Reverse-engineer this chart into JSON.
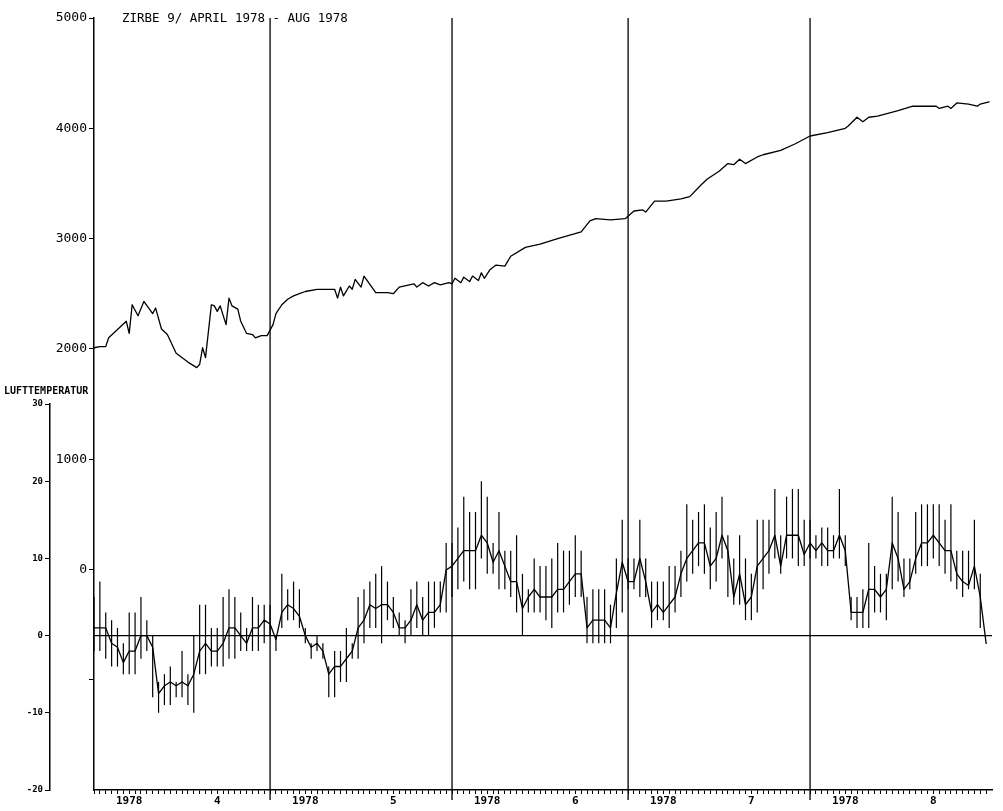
{
  "chart_data": {
    "type": "line",
    "title": "ZIRBE 9/ APRIL 1978 - AUG 1978",
    "y2label": "LUFTTEMPERATUR",
    "grid": false,
    "legend": false,
    "marker": "none",
    "xlim": [
      "1978-04-01",
      "1978-09-01"
    ],
    "xticks": [
      {
        "value": "1978-04-01",
        "label": null
      },
      {
        "value": "1978-04-02",
        "label": null
      },
      {
        "value": "1978-04-03",
        "label": null
      },
      {
        "value": "1978-04-04",
        "label": null
      },
      {
        "value": "1978-04-05",
        "label": null
      },
      {
        "value": "1978-04-06",
        "label": null
      },
      {
        "value": "1978-04-07",
        "label": "1978"
      },
      {
        "value": "1978-04-08",
        "label": null
      },
      {
        "value": "1978-04-09",
        "label": null
      },
      {
        "value": "1978-04-10",
        "label": null
      },
      {
        "value": "1978-04-11",
        "label": null
      },
      {
        "value": "1978-04-12",
        "label": null
      },
      {
        "value": "1978-04-13",
        "label": null
      },
      {
        "value": "1978-04-14",
        "label": null
      },
      {
        "value": "1978-04-15",
        "label": null
      },
      {
        "value": "1978-04-16",
        "label": null
      },
      {
        "value": "1978-04-17",
        "label": null
      },
      {
        "value": "1978-04-18",
        "label": null
      },
      {
        "value": "1978-04-19",
        "label": null
      },
      {
        "value": "1978-04-20",
        "label": null
      },
      {
        "value": "1978-04-21",
        "label": null
      },
      {
        "value": "1978-04-22",
        "label": "4"
      },
      {
        "value": "1978-04-23",
        "label": null
      },
      {
        "value": "1978-04-24",
        "label": null
      },
      {
        "value": "1978-04-25",
        "label": null
      },
      {
        "value": "1978-04-26",
        "label": null
      },
      {
        "value": "1978-04-27",
        "label": null
      },
      {
        "value": "1978-04-28",
        "label": null
      },
      {
        "value": "1978-04-29",
        "label": null
      },
      {
        "value": "1978-04-30",
        "label": null
      },
      {
        "value": "1978-05-01",
        "label": null
      },
      {
        "value": "1978-05-02",
        "label": null
      },
      {
        "value": "1978-05-03",
        "label": null
      },
      {
        "value": "1978-05-04",
        "label": null
      },
      {
        "value": "1978-05-05",
        "label": null
      },
      {
        "value": "1978-05-06",
        "label": null
      },
      {
        "value": "1978-05-07",
        "label": "1978"
      },
      {
        "value": "1978-05-08",
        "label": null
      },
      {
        "value": "1978-05-09",
        "label": null
      },
      {
        "value": "1978-05-10",
        "label": null
      },
      {
        "value": "1978-05-11",
        "label": null
      },
      {
        "value": "1978-05-12",
        "label": null
      },
      {
        "value": "1978-05-13",
        "label": null
      },
      {
        "value": "1978-05-14",
        "label": null
      },
      {
        "value": "1978-05-15",
        "label": null
      },
      {
        "value": "1978-05-16",
        "label": null
      },
      {
        "value": "1978-05-17",
        "label": null
      },
      {
        "value": "1978-05-18",
        "label": null
      },
      {
        "value": "1978-05-19",
        "label": null
      },
      {
        "value": "1978-05-20",
        "label": null
      },
      {
        "value": "1978-05-21",
        "label": null
      },
      {
        "value": "1978-05-22",
        "label": "5"
      },
      {
        "value": "1978-05-23",
        "label": null
      },
      {
        "value": "1978-05-24",
        "label": null
      },
      {
        "value": "1978-05-25",
        "label": null
      },
      {
        "value": "1978-05-26",
        "label": null
      },
      {
        "value": "1978-05-27",
        "label": null
      },
      {
        "value": "1978-05-28",
        "label": null
      },
      {
        "value": "1978-05-29",
        "label": null
      },
      {
        "value": "1978-05-30",
        "label": null
      },
      {
        "value": "1978-05-31",
        "label": null
      },
      {
        "value": "1978-06-01",
        "label": null
      },
      {
        "value": "1978-06-02",
        "label": null
      },
      {
        "value": "1978-06-03",
        "label": null
      },
      {
        "value": "1978-06-04",
        "label": null
      },
      {
        "value": "1978-06-05",
        "label": null
      },
      {
        "value": "1978-06-06",
        "label": null
      },
      {
        "value": "1978-06-07",
        "label": "1978"
      },
      {
        "value": "1978-06-08",
        "label": null
      },
      {
        "value": "1978-06-09",
        "label": null
      },
      {
        "value": "1978-06-10",
        "label": null
      },
      {
        "value": "1978-06-11",
        "label": null
      },
      {
        "value": "1978-06-12",
        "label": null
      },
      {
        "value": "1978-06-13",
        "label": null
      },
      {
        "value": "1978-06-14",
        "label": null
      },
      {
        "value": "1978-06-15",
        "label": null
      },
      {
        "value": "1978-06-16",
        "label": null
      },
      {
        "value": "1978-06-17",
        "label": null
      },
      {
        "value": "1978-06-18",
        "label": null
      },
      {
        "value": "1978-06-19",
        "label": null
      },
      {
        "value": "1978-06-20",
        "label": null
      },
      {
        "value": "1978-06-21",
        "label": null
      },
      {
        "value": "1978-06-22",
        "label": "6"
      },
      {
        "value": "1978-06-23",
        "label": null
      },
      {
        "value": "1978-06-24",
        "label": null
      },
      {
        "value": "1978-06-25",
        "label": null
      },
      {
        "value": "1978-06-26",
        "label": null
      },
      {
        "value": "1978-06-27",
        "label": null
      },
      {
        "value": "1978-06-28",
        "label": null
      },
      {
        "value": "1978-06-29",
        "label": null
      },
      {
        "value": "1978-06-30",
        "label": null
      },
      {
        "value": "1978-07-01",
        "label": null
      },
      {
        "value": "1978-07-02",
        "label": null
      },
      {
        "value": "1978-07-03",
        "label": null
      },
      {
        "value": "1978-07-04",
        "label": null
      },
      {
        "value": "1978-07-05",
        "label": null
      },
      {
        "value": "1978-07-06",
        "label": null
      },
      {
        "value": "1978-07-07",
        "label": "1978"
      },
      {
        "value": "1978-07-08",
        "label": null
      },
      {
        "value": "1978-07-09",
        "label": null
      },
      {
        "value": "1978-07-10",
        "label": null
      },
      {
        "value": "1978-07-11",
        "label": null
      },
      {
        "value": "1978-07-12",
        "label": null
      },
      {
        "value": "1978-07-13",
        "label": null
      },
      {
        "value": "1978-07-14",
        "label": null
      },
      {
        "value": "1978-07-15",
        "label": null
      },
      {
        "value": "1978-07-16",
        "label": null
      },
      {
        "value": "1978-07-17",
        "label": null
      },
      {
        "value": "1978-07-18",
        "label": null
      },
      {
        "value": "1978-07-19",
        "label": null
      },
      {
        "value": "1978-07-20",
        "label": null
      },
      {
        "value": "1978-07-21",
        "label": null
      },
      {
        "value": "1978-07-22",
        "label": "7"
      },
      {
        "value": "1978-07-23",
        "label": null
      },
      {
        "value": "1978-07-24",
        "label": null
      },
      {
        "value": "1978-07-25",
        "label": null
      },
      {
        "value": "1978-07-26",
        "label": null
      },
      {
        "value": "1978-07-27",
        "label": null
      },
      {
        "value": "1978-07-28",
        "label": null
      },
      {
        "value": "1978-07-29",
        "label": null
      },
      {
        "value": "1978-07-30",
        "label": null
      },
      {
        "value": "1978-07-31",
        "label": null
      },
      {
        "value": "1978-08-01",
        "label": null
      },
      {
        "value": "1978-08-02",
        "label": null
      },
      {
        "value": "1978-08-03",
        "label": null
      },
      {
        "value": "1978-08-04",
        "label": null
      },
      {
        "value": "1978-08-05",
        "label": null
      },
      {
        "value": "1978-08-06",
        "label": null
      },
      {
        "value": "1978-08-07",
        "label": "1978"
      },
      {
        "value": "1978-08-08",
        "label": null
      },
      {
        "value": "1978-08-09",
        "label": null
      },
      {
        "value": "1978-08-10",
        "label": null
      },
      {
        "value": "1978-08-11",
        "label": null
      },
      {
        "value": "1978-08-12",
        "label": null
      },
      {
        "value": "1978-08-13",
        "label": null
      },
      {
        "value": "1978-08-14",
        "label": null
      },
      {
        "value": "1978-08-15",
        "label": null
      },
      {
        "value": "1978-08-16",
        "label": null
      },
      {
        "value": "1978-08-17",
        "label": null
      },
      {
        "value": "1978-08-18",
        "label": null
      },
      {
        "value": "1978-08-19",
        "label": null
      },
      {
        "value": "1978-08-20",
        "label": null
      },
      {
        "value": "1978-08-21",
        "label": null
      },
      {
        "value": "1978-08-22",
        "label": "8"
      },
      {
        "value": "1978-08-23",
        "label": null
      },
      {
        "value": "1978-08-24",
        "label": null
      },
      {
        "value": "1978-08-25",
        "label": null
      },
      {
        "value": "1978-08-26",
        "label": null
      },
      {
        "value": "1978-08-27",
        "label": null
      },
      {
        "value": "1978-08-28",
        "label": null
      },
      {
        "value": "1978-08-29",
        "label": null
      },
      {
        "value": "1978-08-30",
        "label": null
      },
      {
        "value": "1978-08-31",
        "label": null
      }
    ],
    "ylim": [
      -2000,
      5000
    ],
    "yticks": [
      {
        "value": -1000,
        "label": null
      },
      0,
      1000,
      2000,
      3000,
      4000,
      5000
    ],
    "y2lim": [
      -20,
      30
    ],
    "y2ticks": [
      -20,
      -10,
      0,
      10,
      20,
      30
    ],
    "ref_lines": [
      {
        "axis": "x",
        "value": "1978-05-01",
        "color": "#000000"
      },
      {
        "axis": "x",
        "value": "1978-06-01",
        "color": "#000000"
      },
      {
        "axis": "x",
        "value": "1978-07-01",
        "color": "#000000"
      },
      {
        "axis": "x",
        "value": "1978-08-01",
        "color": "#000000"
      },
      {
        "axis": "y2",
        "value": 0,
        "color": "#000000"
      }
    ],
    "series": [
      {
        "color": "#000000",
        "x": [
          "1978-04-01",
          "1978-04-02",
          "1978-04-03",
          "1978-04-03T12:00",
          "1978-04-06T12:00",
          "1978-04-07",
          "1978-04-07T12:00",
          "1978-04-08T12:00",
          "1978-04-09T12:00",
          "1978-04-11",
          "1978-04-11T12:00",
          "1978-04-12T12:00",
          "1978-04-13T12:00",
          "1978-04-15",
          "1978-04-17",
          "1978-04-18T12:00",
          "1978-04-19",
          "1978-04-19T12:00",
          "1978-04-20",
          "1978-04-21",
          "1978-04-21T12:00",
          "1978-04-22",
          "1978-04-22T12:00",
          "1978-04-23T12:00",
          "1978-04-24",
          "1978-04-24T12:00",
          "1978-04-25T12:00",
          "1978-04-26",
          "1978-04-27",
          "1978-04-28",
          "1978-04-28T12:00",
          "1978-04-29T12:00",
          "1978-04-30T12:00",
          "1978-05-01T12:00",
          "1978-05-02",
          "1978-05-03",
          "1978-05-04",
          "1978-05-05",
          "1978-05-06",
          "1978-05-07",
          "1978-05-09",
          "1978-05-11",
          "1978-05-12",
          "1978-05-12T12:00",
          "1978-05-13",
          "1978-05-13T12:00",
          "1978-05-14T12:00",
          "1978-05-15",
          "1978-05-15T12:00",
          "1978-05-16T12:00",
          "1978-05-17",
          "1978-05-19",
          "1978-05-21",
          "1978-05-22",
          "1978-05-23",
          "1978-05-25T12:00",
          "1978-05-26",
          "1978-05-27",
          "1978-05-28",
          "1978-05-29",
          "1978-05-30",
          "1978-05-31T12:00",
          "1978-06-01",
          "1978-06-01T12:00",
          "1978-06-02T12:00",
          "1978-06-03",
          "1978-06-04",
          "1978-06-04T12:00",
          "1978-06-05T12:00",
          "1978-06-06",
          "1978-06-06T12:00",
          "1978-06-07T12:00",
          "1978-06-08T12:00",
          "1978-06-10",
          "1978-06-11",
          "1978-06-13T12:00",
          "1978-06-16",
          "1978-06-19",
          "1978-06-23",
          "1978-06-24T12:00",
          "1978-06-25T12:00",
          "1978-06-28",
          "1978-06-30T12:00",
          "1978-07-02",
          "1978-07-03T12:00",
          "1978-07-04",
          "1978-07-05T12:00",
          "1978-07-07T12:00",
          "1978-07-10",
          "1978-07-11T12:00",
          "1978-07-13T12:00",
          "1978-07-14T12:00",
          "1978-07-16T12:00",
          "1978-07-18",
          "1978-07-19",
          "1978-07-20",
          "1978-07-21",
          "1978-07-23",
          "1978-07-24",
          "1978-07-27",
          "1978-07-29T12:00",
          "1978-08-01",
          "1978-08-04",
          "1978-08-07",
          "1978-08-07T12:00",
          "1978-08-09",
          "1978-08-10",
          "1978-08-11",
          "1978-08-12T12:00",
          "1978-08-16",
          "1978-08-18T12:00",
          "1978-08-20T12:00",
          "1978-08-22T12:00",
          "1978-08-23",
          "1978-08-24T12:00",
          "1978-08-25",
          "1978-08-26",
          "1978-08-28",
          "1978-08-29T12:00",
          "1978-08-30",
          "1978-08-31T12:00"
        ],
        "values": [
          2010,
          2020,
          2020,
          2100,
          2250,
          2140,
          2400,
          2300,
          2430,
          2320,
          2370,
          2180,
          2130,
          1960,
          1880,
          1830,
          1860,
          2010,
          1920,
          2400,
          2390,
          2340,
          2390,
          2220,
          2460,
          2390,
          2360,
          2250,
          2140,
          2130,
          2100,
          2120,
          2120,
          2220,
          2320,
          2400,
          2450,
          2480,
          2500,
          2520,
          2540,
          2540,
          2540,
          2460,
          2560,
          2480,
          2570,
          2540,
          2630,
          2560,
          2660,
          2510,
          2510,
          2500,
          2560,
          2590,
          2560,
          2600,
          2570,
          2600,
          2580,
          2600,
          2590,
          2640,
          2600,
          2650,
          2610,
          2660,
          2620,
          2690,
          2640,
          2720,
          2760,
          2750,
          2840,
          2920,
          2950,
          3000,
          3060,
          3160,
          3180,
          3170,
          3180,
          3250,
          3260,
          3240,
          3340,
          3340,
          3360,
          3380,
          3490,
          3540,
          3610,
          3680,
          3670,
          3720,
          3680,
          3740,
          3760,
          3800,
          3860,
          3930,
          3960,
          4000,
          4020,
          4100,
          4060,
          4100,
          4110,
          4160,
          4200,
          4200,
          4200,
          4180,
          4200,
          4180,
          4230,
          4220,
          4200,
          4220,
          4240
        ]
      },
      {
        "color": "#000000",
        "axis": "y2",
        "x": [
          "1978-04-01",
          "1978-04-02",
          "1978-04-03",
          "1978-04-04",
          "1978-04-05",
          "1978-04-06",
          "1978-04-07",
          "1978-04-08",
          "1978-04-09",
          "1978-04-10",
          "1978-04-11",
          "1978-04-12",
          "1978-04-13",
          "1978-04-14",
          "1978-04-15",
          "1978-04-16",
          "1978-04-17",
          "1978-04-18",
          "1978-04-19",
          "1978-04-20",
          "1978-04-21",
          "1978-04-22",
          "1978-04-23",
          "1978-04-24",
          "1978-04-25",
          "1978-04-26",
          "1978-04-27",
          "1978-04-28",
          "1978-04-29",
          "1978-04-30",
          "1978-05-01",
          "1978-05-02",
          "1978-05-03",
          "1978-05-04",
          "1978-05-05",
          "1978-05-06",
          "1978-05-07",
          "1978-05-08",
          "1978-05-09",
          "1978-05-10",
          "1978-05-11",
          "1978-05-12",
          "1978-05-13",
          "1978-05-14",
          "1978-05-15",
          "1978-05-16",
          "1978-05-17",
          "1978-05-18",
          "1978-05-19",
          "1978-05-20",
          "1978-05-21",
          "1978-05-22",
          "1978-05-23",
          "1978-05-24",
          "1978-05-25",
          "1978-05-26",
          "1978-05-27",
          "1978-05-28",
          "1978-05-29",
          "1978-05-30",
          "1978-05-31",
          "1978-06-01",
          "1978-06-02",
          "1978-06-03",
          "1978-06-04",
          "1978-06-05",
          "1978-06-06",
          "1978-06-07",
          "1978-06-08",
          "1978-06-09",
          "1978-06-10",
          "1978-06-11",
          "1978-06-12",
          "1978-06-13",
          "1978-06-14",
          "1978-06-15",
          "1978-06-16",
          "1978-06-17",
          "1978-06-18",
          "1978-06-19",
          "1978-06-20",
          "1978-06-21",
          "1978-06-22",
          "1978-06-23",
          "1978-06-24",
          "1978-06-25",
          "1978-06-26",
          "1978-06-27",
          "1978-06-28",
          "1978-06-29",
          "1978-06-30",
          "1978-07-01",
          "1978-07-02",
          "1978-07-03",
          "1978-07-04",
          "1978-07-05",
          "1978-07-06",
          "1978-07-07",
          "1978-07-08",
          "1978-07-09",
          "1978-07-10",
          "1978-07-11",
          "1978-07-12",
          "1978-07-13",
          "1978-07-14",
          "1978-07-15",
          "1978-07-16",
          "1978-07-17",
          "1978-07-18",
          "1978-07-19",
          "1978-07-20",
          "1978-07-21",
          "1978-07-22",
          "1978-07-23",
          "1978-07-24",
          "1978-07-25",
          "1978-07-26",
          "1978-07-27",
          "1978-07-28",
          "1978-07-29",
          "1978-07-30",
          "1978-07-31",
          "1978-08-01",
          "1978-08-02",
          "1978-08-03",
          "1978-08-04",
          "1978-08-05",
          "1978-08-06",
          "1978-08-07",
          "1978-08-08",
          "1978-08-09",
          "1978-08-10",
          "1978-08-11",
          "1978-08-12",
          "1978-08-13",
          "1978-08-14",
          "1978-08-15",
          "1978-08-16",
          "1978-08-17",
          "1978-08-18",
          "1978-08-19",
          "1978-08-20",
          "1978-08-21",
          "1978-08-22",
          "1978-08-23",
          "1978-08-24",
          "1978-08-25",
          "1978-08-26",
          "1978-08-27",
          "1978-08-28",
          "1978-08-29",
          "1978-08-30",
          "1978-08-31"
        ],
        "values": [
          1,
          1,
          1,
          -1,
          -1.5,
          -3.5,
          -2,
          -2,
          0,
          0,
          -1.5,
          -7.5,
          -6.5,
          -6,
          -6.5,
          -6,
          -6.5,
          -5,
          -2,
          -1,
          -2,
          -2,
          -1,
          1,
          1,
          0,
          -1,
          1,
          1,
          2,
          1.5,
          -0.5,
          3,
          4,
          3.5,
          2.5,
          0,
          -1.5,
          -1,
          -2,
          -5,
          -4,
          -4,
          -3,
          -2,
          1,
          2,
          4,
          3.5,
          4,
          4,
          3,
          1,
          1,
          2,
          4,
          2,
          3,
          3,
          4,
          8.5,
          9,
          10,
          11,
          11,
          11,
          13,
          12,
          9.5,
          11,
          9,
          7,
          7,
          3.5,
          5,
          6,
          5,
          5,
          5,
          6,
          6,
          7,
          8,
          8,
          1,
          2,
          2,
          2,
          1,
          5.5,
          9.5,
          7,
          7,
          10,
          7,
          3,
          4,
          3,
          4,
          5,
          8,
          10,
          11,
          12,
          12,
          9,
          10,
          13,
          11,
          5,
          8,
          4,
          5,
          9,
          10,
          11,
          13,
          9,
          13,
          13,
          13,
          10.5,
          12,
          11,
          12,
          11,
          11,
          13,
          11,
          3,
          3,
          3,
          6,
          6,
          5,
          6,
          12,
          10,
          6,
          7,
          10,
          12,
          12,
          13,
          12,
          11,
          11,
          8,
          7,
          6.5,
          9,
          5,
          -1
        ],
        "errors": [
          [
            -2,
            5
          ],
          [
            -2,
            7
          ],
          [
            -3,
            3
          ],
          [
            -4,
            2
          ],
          [
            -4,
            1
          ],
          [
            -5,
            -1
          ],
          [
            -5,
            3
          ],
          [
            -5,
            3
          ],
          [
            -3,
            5
          ],
          [
            -2,
            2
          ],
          [
            -8,
            0
          ],
          [
            -10,
            -6
          ],
          [
            -9,
            -5
          ],
          [
            -9,
            -4
          ],
          [
            -8,
            -6
          ],
          [
            -8,
            -2
          ],
          [
            -9,
            -5
          ],
          [
            -10,
            0
          ],
          [
            -5,
            4
          ],
          [
            -5,
            4
          ],
          [
            -4,
            1
          ],
          [
            -4,
            1
          ],
          [
            -4,
            5
          ],
          [
            -3,
            6
          ],
          [
            -3,
            5
          ],
          [
            -2,
            3
          ],
          [
            -2,
            1
          ],
          [
            -2,
            5
          ],
          [
            -2,
            4
          ],
          [
            -1,
            4
          ],
          [
            0,
            4
          ],
          [
            -2,
            0
          ],
          [
            1,
            8
          ],
          [
            2,
            6
          ],
          [
            2,
            7
          ],
          [
            1,
            6
          ],
          [
            -1,
            1
          ],
          [
            -3,
            -1
          ],
          [
            -2,
            0
          ],
          [
            -3,
            -1
          ],
          [
            -8,
            -4
          ],
          [
            -8,
            -2
          ],
          [
            -6,
            -2
          ],
          [
            -6,
            1
          ],
          [
            -3,
            -1
          ],
          [
            -3,
            5
          ],
          [
            -1,
            6
          ],
          [
            1,
            7
          ],
          [
            1,
            8
          ],
          [
            -1,
            9
          ],
          [
            2,
            7
          ],
          [
            1,
            5
          ],
          [
            0,
            3
          ],
          [
            -1,
            2
          ],
          [
            0,
            6
          ],
          [
            1,
            7
          ],
          [
            0,
            5
          ],
          [
            0,
            7
          ],
          [
            1,
            7
          ],
          [
            3,
            7
          ],
          [
            3,
            12
          ],
          [
            5,
            12
          ],
          [
            6,
            14
          ],
          [
            7,
            18
          ],
          [
            6,
            16
          ],
          [
            6,
            16
          ],
          [
            10,
            20
          ],
          [
            8,
            18
          ],
          [
            8,
            12
          ],
          [
            6,
            16
          ],
          [
            6,
            11
          ],
          [
            5,
            11
          ],
          [
            3,
            13
          ],
          [
            0,
            8
          ],
          [
            3,
            6
          ],
          [
            3,
            10
          ],
          [
            3,
            9
          ],
          [
            2,
            9
          ],
          [
            1,
            10
          ],
          [
            3,
            12
          ],
          [
            3,
            11
          ],
          [
            4,
            11
          ],
          [
            5,
            13
          ],
          [
            5,
            11
          ],
          [
            -1,
            5
          ],
          [
            -1,
            6
          ],
          [
            -1,
            6
          ],
          [
            -1,
            6
          ],
          [
            -1,
            4
          ],
          [
            1,
            10
          ],
          [
            3,
            15
          ],
          [
            6,
            10
          ],
          [
            6,
            10
          ],
          [
            5,
            15
          ],
          [
            5,
            10
          ],
          [
            1,
            7
          ],
          [
            2,
            7
          ],
          [
            2,
            7
          ],
          [
            1,
            9
          ],
          [
            3,
            9
          ],
          [
            5,
            11
          ],
          [
            7,
            17
          ],
          [
            8,
            15
          ],
          [
            9,
            16
          ],
          [
            8,
            17
          ],
          [
            6,
            14
          ],
          [
            7,
            16
          ],
          [
            10,
            18
          ],
          [
            5,
            13
          ],
          [
            4,
            10
          ],
          [
            4,
            13
          ],
          [
            2,
            10
          ],
          [
            2,
            8
          ],
          [
            3,
            15
          ],
          [
            6,
            15
          ],
          [
            8,
            15
          ],
          [
            10,
            19
          ],
          [
            8,
            13
          ],
          [
            10,
            18
          ],
          [
            10,
            19
          ],
          [
            9,
            19
          ],
          [
            9,
            15
          ],
          [
            10,
            15
          ],
          [
            10,
            13
          ],
          [
            9,
            14
          ],
          [
            9,
            14
          ],
          [
            10,
            13
          ],
          [
            10,
            19
          ],
          [
            9,
            13
          ],
          [
            2,
            5
          ],
          [
            1,
            5
          ],
          [
            1,
            6
          ],
          [
            1,
            12
          ],
          [
            3,
            9
          ],
          [
            3,
            8
          ],
          [
            2,
            8
          ],
          [
            6,
            18
          ],
          [
            7,
            16
          ],
          [
            5,
            10
          ],
          [
            6,
            10
          ],
          [
            8,
            16
          ],
          [
            9,
            17
          ],
          [
            9,
            17
          ],
          [
            10,
            17
          ],
          [
            9,
            17
          ],
          [
            8,
            15
          ],
          [
            7,
            17
          ],
          [
            6,
            11
          ],
          [
            5,
            11
          ],
          [
            6,
            11
          ],
          [
            6,
            15
          ],
          [
            1,
            8
          ],
          null
        ]
      }
    ]
  }
}
